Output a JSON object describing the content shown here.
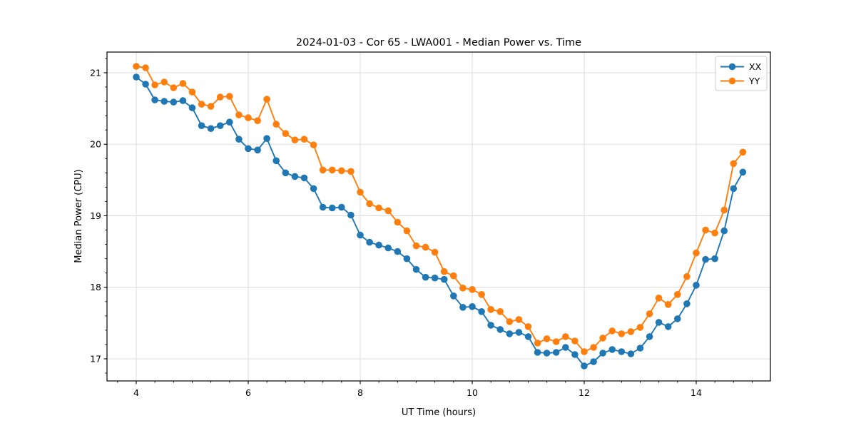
{
  "chart_data": {
    "type": "line",
    "title": "2024-01-03 - Cor 65 - LWA001 - Median Power vs. Time",
    "xlabel": "UT Time (hours)",
    "ylabel": "Median Power (CPU)",
    "xlim": [
      3.478,
      15.325
    ],
    "ylim": [
      16.691,
      21.289
    ],
    "xticks": [
      4,
      6,
      8,
      10,
      12,
      14
    ],
    "yticks": [
      17,
      18,
      19,
      20,
      21
    ],
    "grid": true,
    "legend_position": "upper-right",
    "x": [
      4.0,
      4.167,
      4.333,
      4.5,
      4.667,
      4.833,
      5.0,
      5.167,
      5.333,
      5.5,
      5.667,
      5.833,
      6.0,
      6.167,
      6.333,
      6.5,
      6.667,
      6.833,
      7.0,
      7.167,
      7.333,
      7.5,
      7.667,
      7.833,
      8.0,
      8.167,
      8.333,
      8.5,
      8.667,
      8.833,
      9.0,
      9.167,
      9.333,
      9.5,
      9.667,
      9.833,
      10.0,
      10.167,
      10.333,
      10.5,
      10.667,
      10.833,
      11.0,
      11.167,
      11.333,
      11.5,
      11.667,
      11.833,
      12.0,
      12.167,
      12.333,
      12.5,
      12.667,
      12.833,
      13.0,
      13.167,
      13.333,
      13.5,
      13.667,
      13.833,
      14.0,
      14.167,
      14.333,
      14.5,
      14.667,
      14.833
    ],
    "series": [
      {
        "name": "XX",
        "color": "#1f77b4",
        "values": [
          20.94,
          20.84,
          20.62,
          20.6,
          20.59,
          20.61,
          20.51,
          20.26,
          20.22,
          20.26,
          20.31,
          20.07,
          19.94,
          19.92,
          20.08,
          19.77,
          19.6,
          19.55,
          19.53,
          19.38,
          19.12,
          19.11,
          19.12,
          19.01,
          18.73,
          18.63,
          18.59,
          18.55,
          18.5,
          18.4,
          18.25,
          18.14,
          18.13,
          18.11,
          17.88,
          17.72,
          17.73,
          17.66,
          17.47,
          17.41,
          17.35,
          17.37,
          17.31,
          17.09,
          17.08,
          17.09,
          17.16,
          17.06,
          16.9,
          16.96,
          17.08,
          17.13,
          17.1,
          17.07,
          17.15,
          17.31,
          17.51,
          17.45,
          17.56,
          17.77,
          18.03,
          18.39,
          18.4,
          18.79,
          19.38,
          19.61
        ]
      },
      {
        "name": "YY",
        "color": "#ff7f0e",
        "values": [
          21.09,
          21.07,
          20.83,
          20.87,
          20.79,
          20.85,
          20.73,
          20.56,
          20.53,
          20.66,
          20.67,
          20.41,
          20.37,
          20.33,
          20.63,
          20.28,
          20.15,
          20.06,
          20.07,
          19.99,
          19.64,
          19.64,
          19.63,
          19.62,
          19.33,
          19.17,
          19.11,
          19.07,
          18.91,
          18.79,
          18.58,
          18.56,
          18.49,
          18.22,
          18.16,
          17.99,
          17.97,
          17.9,
          17.69,
          17.66,
          17.52,
          17.55,
          17.45,
          17.22,
          17.28,
          17.24,
          17.31,
          17.25,
          17.1,
          17.16,
          17.29,
          17.39,
          17.35,
          17.38,
          17.44,
          17.63,
          17.85,
          17.76,
          17.9,
          18.15,
          18.48,
          18.8,
          18.76,
          19.08,
          19.73,
          19.89
        ]
      }
    ]
  },
  "style": {
    "grid_color": "#d9d9d9",
    "spine_color": "#000000",
    "background": "#ffffff",
    "legend_border": "#cccccc"
  }
}
